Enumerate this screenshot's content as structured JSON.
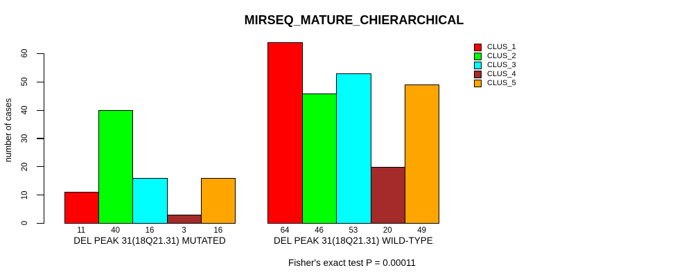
{
  "figure": {
    "background": "#FFFFFF",
    "text_color": "#000000",
    "axis_color": "#000000"
  },
  "chart_data": {
    "type": "bar",
    "title": "MIRSEQ_MATURE_CHIERARCHICAL",
    "ylabel": "number of cases",
    "xlabel": "",
    "ylim": [
      0,
      64
    ],
    "yticks": [
      0,
      10,
      20,
      30,
      40,
      50,
      60
    ],
    "grid": false,
    "legend_position": "top-right",
    "bar_value_labels_shown": true,
    "series": [
      {
        "name": "CLUS_1",
        "color": "#FF0000"
      },
      {
        "name": "CLUS_2",
        "color": "#00FF00"
      },
      {
        "name": "CLUS_3",
        "color": "#00FFFF"
      },
      {
        "name": "CLUS_4",
        "color": "#A52A2A"
      },
      {
        "name": "CLUS_5",
        "color": "#FFA500"
      }
    ],
    "groups": [
      {
        "label": "DEL PEAK 31(18Q21.31) MUTATED",
        "values": [
          11,
          40,
          16,
          3,
          16
        ]
      },
      {
        "label": "DEL PEAK 31(18Q21.31) WILD-TYPE",
        "values": [
          64,
          46,
          53,
          20,
          49
        ]
      }
    ],
    "caption": "Fisher's exact test P = 0.00011"
  }
}
